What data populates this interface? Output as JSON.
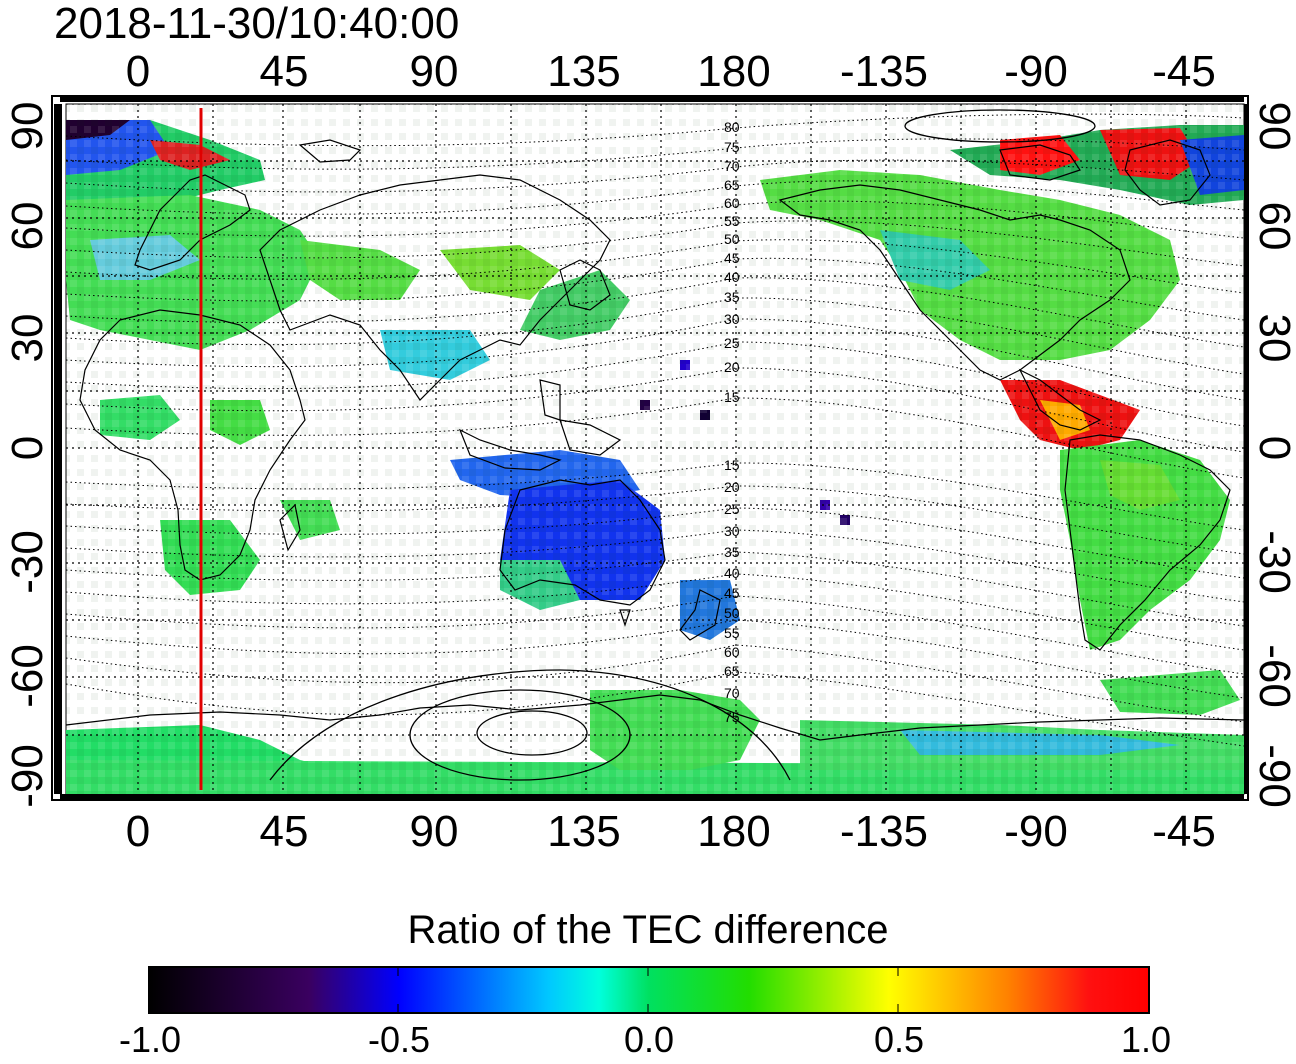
{
  "timestamp": "2018-11-30/10:40:00",
  "map": {
    "top_lon_labels": [
      "0",
      "45",
      "90",
      "135",
      "180",
      "-135",
      "-90",
      "-45"
    ],
    "bottom_lon_labels": [
      "0",
      "45",
      "90",
      "135",
      "180",
      "-135",
      "-90",
      "-45"
    ],
    "left_lat_labels": [
      "90",
      "60",
      "30",
      "0",
      "-30",
      "-60",
      "-90"
    ],
    "right_lat_labels": [
      "90",
      "60",
      "30",
      "0",
      "-30",
      "-60",
      "-90"
    ],
    "magnetic_lat_labels": [
      "80",
      "75",
      "70",
      "65",
      "60",
      "55",
      "50",
      "45",
      "40",
      "35",
      "30",
      "25",
      "20",
      "15",
      "15",
      "20",
      "25",
      "30",
      "35",
      "40",
      "45",
      "50",
      "55",
      "60",
      "65",
      "70",
      "75"
    ],
    "terminator_longitude": 20,
    "colors": {
      "terminator": "#e00000",
      "frame": "#000000"
    }
  },
  "colorbar": {
    "title": "Ratio of the TEC difference",
    "tick_labels": [
      "-1.0",
      "-0.5",
      "0.0",
      "0.5",
      "1.0"
    ],
    "range": [
      -1.0,
      1.0
    ],
    "colormap": [
      "#000000",
      "#3a0060",
      "#0000ff",
      "#00ffff",
      "#00e000",
      "#ffff00",
      "#ff8000",
      "#ff0000"
    ]
  }
}
